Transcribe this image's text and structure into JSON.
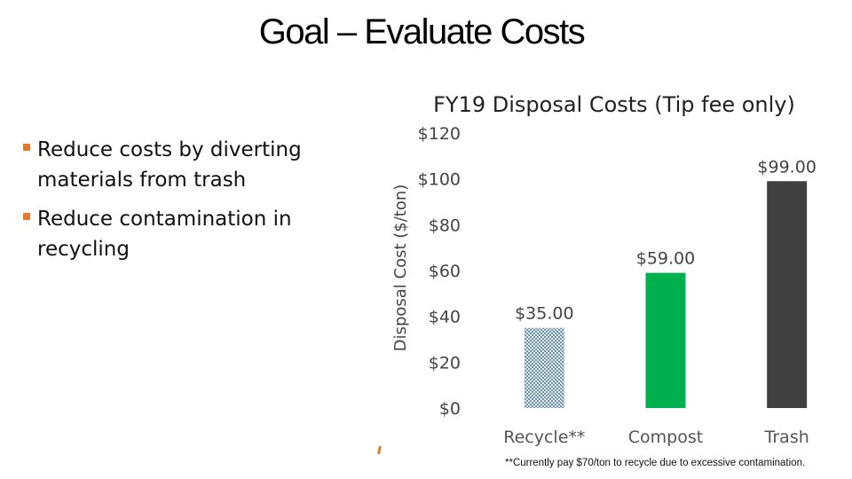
{
  "slide": {
    "title": "Goal – Evaluate Costs",
    "bullets": [
      "Reduce costs by diverting materials from trash",
      "Reduce contamination in recycling"
    ],
    "footnote": "**Currently pay $70/ton to recycle due to excessive contamination.",
    "colors": {
      "bullet_accent": "#E07A30"
    }
  },
  "chart_data": {
    "type": "bar",
    "title": "FY19 Disposal Costs (Tip fee only)",
    "xlabel": "",
    "ylabel": "Disposal Cost ($/ton)",
    "categories": [
      "Recycle**",
      "Compost",
      "Trash"
    ],
    "values": [
      35,
      59,
      99
    ],
    "data_labels": [
      "$35.00",
      "$59.00",
      "$99.00"
    ],
    "bar_colors": [
      "#7FA6B8",
      "#00B050",
      "#404040"
    ],
    "bar_patterns": [
      "crosshatch",
      "solid",
      "solid"
    ],
    "ylim": [
      0,
      120
    ],
    "yticks": [
      0,
      20,
      40,
      60,
      80,
      100,
      120
    ],
    "ytick_labels": [
      "$0",
      "$20",
      "$40",
      "$60",
      "$80",
      "$100",
      "$120"
    ],
    "grid": false,
    "legend": "none"
  }
}
